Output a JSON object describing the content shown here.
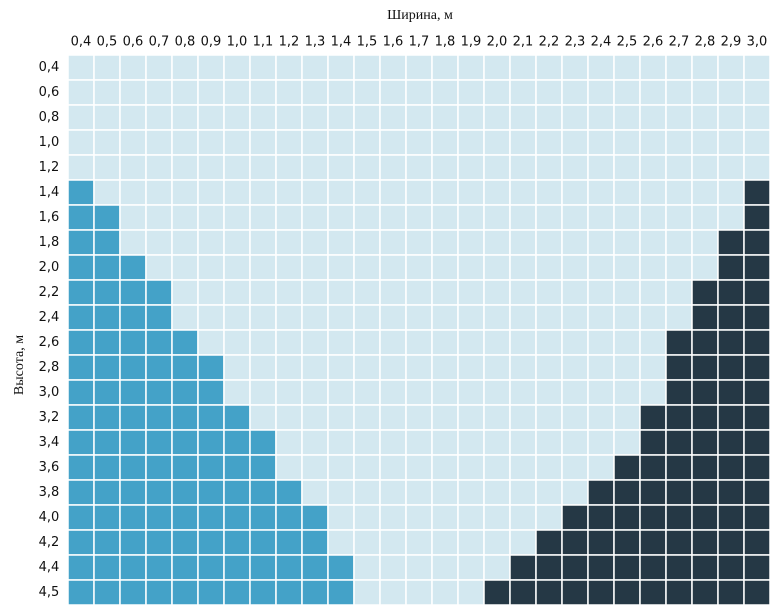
{
  "grid": {
    "x_label": "Ширина, м",
    "y_label": "Высота, м",
    "colors": {
      "L": "#d3e8f0",
      "B": "#44a2c8",
      "D": "#253845"
    },
    "columns": [
      "0,4",
      "0,5",
      "0,6",
      "0,7",
      "0,8",
      "0,9",
      "1,0",
      "1,1",
      "1,2",
      "1,3",
      "1,4",
      "1,5",
      "1,6",
      "1,7",
      "1,8",
      "1,9",
      "2,0",
      "2,1",
      "2,2",
      "2,3",
      "2,4",
      "2,5",
      "2,6",
      "2,7",
      "2,8",
      "2,9",
      "3,0"
    ],
    "rows": [
      {
        "label": "0,4",
        "cells": "LLLLLLLLLLLLLLLLLLLLLLLLLLL"
      },
      {
        "label": "0,6",
        "cells": "LLLLLLLLLLLLLLLLLLLLLLLLLLL"
      },
      {
        "label": "0,8",
        "cells": "LLLLLLLLLLLLLLLLLLLLLLLLLLL"
      },
      {
        "label": "1,0",
        "cells": "LLLLLLLLLLLLLLLLLLLLLLLLLLL"
      },
      {
        "label": "1,2",
        "cells": "LLLLLLLLLLLLLLLLLLLLLLLLLLL"
      },
      {
        "label": "1,4",
        "cells": "BLLLLLLLLLLLLLLLLLLLLLLLLLD"
      },
      {
        "label": "1,6",
        "cells": "BBLLLLLLLLLLLLLLLLLLLLLLLLD"
      },
      {
        "label": "1,8",
        "cells": "BBLLLLLLLLLLLLLLLLLLLLLLLDD"
      },
      {
        "label": "2,0",
        "cells": "BBBLLLLLLLLLLLLLLLLLLLLLLDD"
      },
      {
        "label": "2,2",
        "cells": "BBBBLLLLLLLLLLLLLLLLLLLLDDD"
      },
      {
        "label": "2,4",
        "cells": "BBBBLLLLLLLLLLLLLLLLLLLLDDD"
      },
      {
        "label": "2,6",
        "cells": "BBBBBLLLLLLLLLLLLLLLLLLDDDD"
      },
      {
        "label": "2,8",
        "cells": "BBBBBBLLLLLLLLLLLLLLLLLDDDD"
      },
      {
        "label": "3,0",
        "cells": "BBBBBBLLLLLLLLLLLLLLLLLDDDD"
      },
      {
        "label": "3,2",
        "cells": "BBBBBBBLLLLLLLLLLLLLLLDDDDD"
      },
      {
        "label": "3,4",
        "cells": "BBBBBBBBLLLLLLLLLLLLLLDDDDD"
      },
      {
        "label": "3,6",
        "cells": "BBBBBBBBLLLLLLLLLLLLLDDDDDD"
      },
      {
        "label": "3,8",
        "cells": "BBBBBBBBBLLLLLLLLLLLDDDDDDD"
      },
      {
        "label": "4,0",
        "cells": "BBBBBBBBBBLLLLLLLLLDDDDDDDD"
      },
      {
        "label": "4,2",
        "cells": "BBBBBBBBBBLLLLLLLLDDDDDDDDD"
      },
      {
        "label": "4,4",
        "cells": "BBBBBBBBBBBLLLLLLDDDDDDDDDD"
      },
      {
        "label": "4,5",
        "cells": "BBBBBBBBBBBLLLLLDDDDDDDDDDD"
      }
    ]
  }
}
